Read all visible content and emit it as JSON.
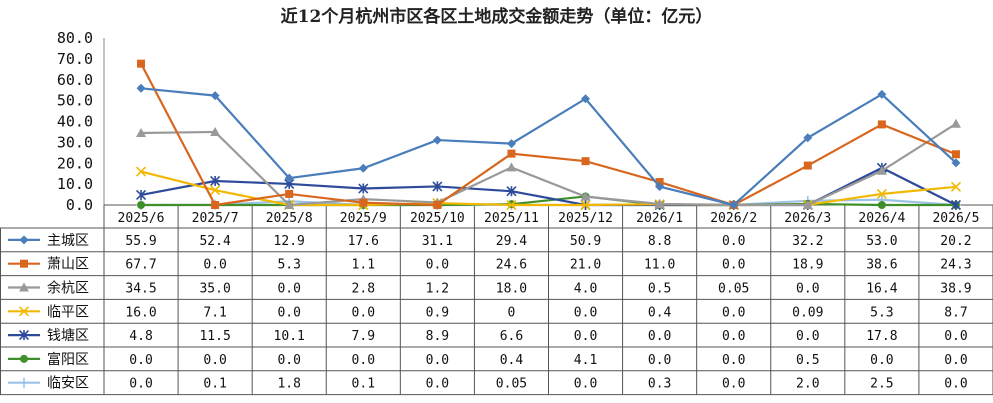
{
  "chart_data": {
    "type": "line",
    "title": "近12个月杭州市区各区土地成交金额走势（单位：亿元）",
    "categories": [
      "2025/6",
      "2025/7",
      "2025/8",
      "2025/9",
      "2025/10",
      "2025/11",
      "2025/12",
      "2026/1",
      "2026/2",
      "2026/3",
      "2026/4",
      "2026/5"
    ],
    "y_ticks": [
      "80.0",
      "70.0",
      "60.0",
      "50.0",
      "40.0",
      "30.0",
      "20.0",
      "10.0",
      "0.0"
    ],
    "ylim": [
      0,
      80
    ],
    "grid": false,
    "legend": "data-table",
    "series": [
      {
        "name": "主城区",
        "color": "#4a7ebb",
        "marker": "diamond",
        "values": [
          55.9,
          52.4,
          12.9,
          17.6,
          31.1,
          29.4,
          50.9,
          8.8,
          0.0,
          32.2,
          53.0,
          20.2
        ],
        "labels": [
          "55.9",
          "52.4",
          "12.9",
          "17.6",
          "31.1",
          "29.4",
          "50.9",
          "8.8",
          "0.0",
          "32.2",
          "53.0",
          "20.2"
        ]
      },
      {
        "name": "萧山区",
        "color": "#d9661f",
        "marker": "square",
        "values": [
          67.7,
          0.0,
          5.3,
          1.1,
          0.0,
          24.6,
          21.0,
          11.0,
          0.0,
          18.9,
          38.6,
          24.3
        ],
        "labels": [
          "67.7",
          "0.0",
          "5.3",
          "1.1",
          "0.0",
          "24.6",
          "21.0",
          "11.0",
          "0.0",
          "18.9",
          "38.6",
          "24.3"
        ]
      },
      {
        "name": "余杭区",
        "color": "#999999",
        "marker": "triangle",
        "values": [
          34.5,
          35.0,
          0.0,
          2.8,
          1.2,
          18.0,
          4.0,
          0.5,
          0.05,
          0.0,
          16.4,
          38.9
        ],
        "labels": [
          "34.5",
          "35.0",
          "0.0",
          "2.8",
          "1.2",
          "18.0",
          "4.0",
          "0.5",
          "0.05",
          "0.0",
          "16.4",
          "38.9"
        ]
      },
      {
        "name": "临平区",
        "color": "#f2b800",
        "marker": "x",
        "values": [
          16.0,
          7.1,
          0.0,
          0.0,
          0.9,
          0,
          0.0,
          0.4,
          0.0,
          0.09,
          5.3,
          8.7
        ],
        "labels": [
          "16.0",
          "7.1",
          "0.0",
          "0.0",
          "0.9",
          "0",
          "0.0",
          "0.4",
          "0.0",
          "0.09",
          "5.3",
          "8.7"
        ]
      },
      {
        "name": "钱塘区",
        "color": "#2d4b9a",
        "marker": "star",
        "values": [
          4.8,
          11.5,
          10.1,
          7.9,
          8.9,
          6.6,
          0.0,
          0.0,
          0.0,
          0.0,
          17.8,
          0.0
        ],
        "labels": [
          "4.8",
          "11.5",
          "10.1",
          "7.9",
          "8.9",
          "6.6",
          "0.0",
          "0.0",
          "0.0",
          "0.0",
          "17.8",
          "0.0"
        ]
      },
      {
        "name": "富阳区",
        "color": "#3f8f2a",
        "marker": "circle",
        "values": [
          0.0,
          0.0,
          0.0,
          0.0,
          0.0,
          0.4,
          4.1,
          0.0,
          0.0,
          0.5,
          0.0,
          0.0
        ],
        "labels": [
          "0.0",
          "0.0",
          "0.0",
          "0.0",
          "0.0",
          "0.4",
          "4.1",
          "0.0",
          "0.0",
          "0.5",
          "0.0",
          "0.0"
        ]
      },
      {
        "name": "临安区",
        "color": "#9cc3e6",
        "marker": "plus",
        "values": [
          0.0,
          0.1,
          1.8,
          0.1,
          0.0,
          0.05,
          0.0,
          0.3,
          0.0,
          2.0,
          2.5,
          0.0
        ],
        "labels": [
          "0.0",
          "0.1",
          "1.8",
          "0.1",
          "0.0",
          "0.05",
          "0.0",
          "0.3",
          "0.0",
          "2.0",
          "2.5",
          "0.0"
        ]
      }
    ]
  }
}
